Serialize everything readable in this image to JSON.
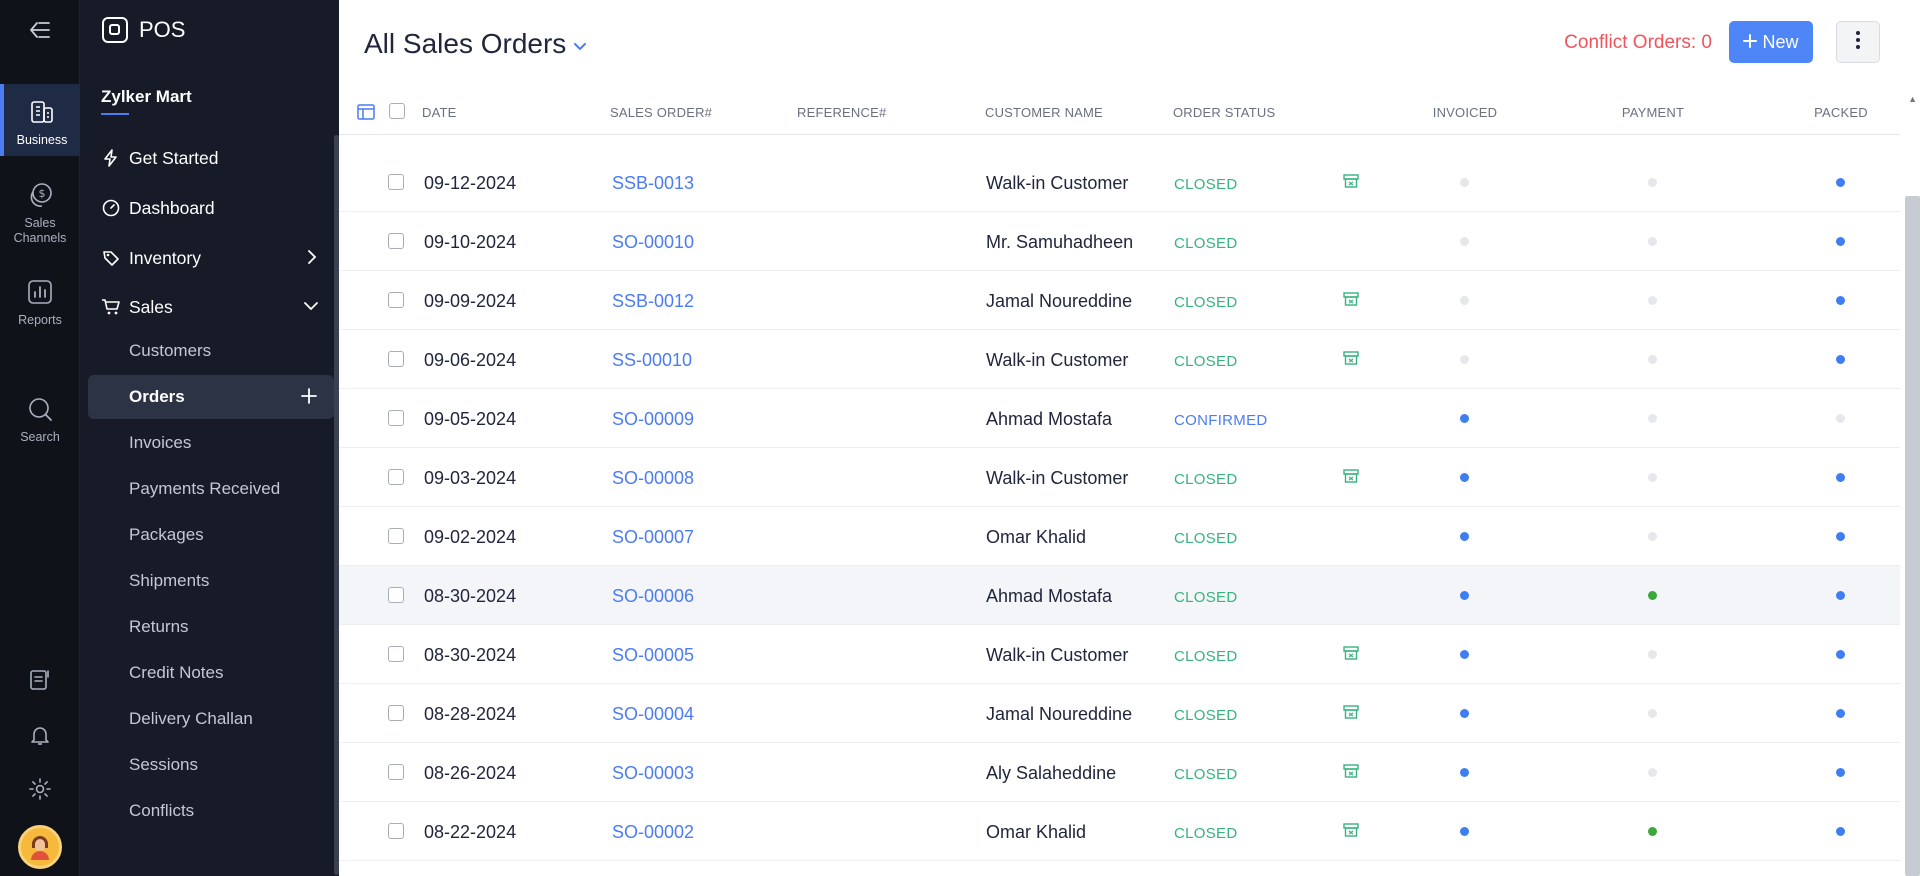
{
  "rail": {
    "items": [
      {
        "label": "Business",
        "icon": "building-icon"
      },
      {
        "label_line1": "Sales",
        "label_line2": "Channels",
        "icon": "dollar-coins-icon"
      },
      {
        "label": "Reports",
        "icon": "chart-icon"
      },
      {
        "label": "Search",
        "icon": "search-icon"
      }
    ]
  },
  "nav": {
    "brand": "POS",
    "org": "Zylker Mart",
    "main": [
      {
        "label": "Get Started"
      },
      {
        "label": "Dashboard"
      },
      {
        "label": "Inventory"
      },
      {
        "label": "Sales"
      }
    ],
    "sub": [
      {
        "label": "Customers"
      },
      {
        "label": "Orders"
      },
      {
        "label": "Invoices"
      },
      {
        "label": "Payments Received"
      },
      {
        "label": "Packages"
      },
      {
        "label": "Shipments"
      },
      {
        "label": "Returns"
      },
      {
        "label": "Credit Notes"
      },
      {
        "label": "Delivery Challan"
      },
      {
        "label": "Sessions"
      },
      {
        "label": "Conflicts"
      }
    ]
  },
  "header": {
    "title": "All Sales Orders",
    "conflict": "Conflict Orders: 0",
    "new_label": "New"
  },
  "table": {
    "columns": {
      "date": "DATE",
      "so": "SALES ORDER#",
      "ref": "REFERENCE#",
      "customer": "CUSTOMER NAME",
      "status": "ORDER STATUS",
      "invoiced": "INVOICED",
      "payment": "PAYMENT",
      "packed": "PACKED"
    },
    "colors": {
      "closed": "#36b37e",
      "confirmed": "#4c7cf3",
      "dot_blue": "#3f7ef0",
      "dot_green": "#3ca83c",
      "dot_grey": "#e5e7eb"
    },
    "rows": [
      {
        "date": "09-12-2024",
        "so": "SSB-0013",
        "customer": "Walk-in Customer",
        "status": "CLOSED",
        "archived": true,
        "invoiced": "grey",
        "payment": "grey",
        "packed": "blue"
      },
      {
        "date": "09-10-2024",
        "so": "SO-00010",
        "customer": "Mr. Samuhadheen",
        "status": "CLOSED",
        "archived": false,
        "invoiced": "grey",
        "payment": "grey",
        "packed": "blue"
      },
      {
        "date": "09-09-2024",
        "so": "SSB-0012",
        "customer": "Jamal Noureddine",
        "status": "CLOSED",
        "archived": true,
        "invoiced": "grey",
        "payment": "grey",
        "packed": "blue"
      },
      {
        "date": "09-06-2024",
        "so": "SS-00010",
        "customer": "Walk-in Customer",
        "status": "CLOSED",
        "archived": true,
        "invoiced": "grey",
        "payment": "grey",
        "packed": "blue"
      },
      {
        "date": "09-05-2024",
        "so": "SO-00009",
        "customer": "Ahmad Mostafa",
        "status": "CONFIRMED",
        "archived": false,
        "invoiced": "blue",
        "payment": "grey",
        "packed": "grey"
      },
      {
        "date": "09-03-2024",
        "so": "SO-00008",
        "customer": "Walk-in Customer",
        "status": "CLOSED",
        "archived": true,
        "invoiced": "blue",
        "payment": "grey",
        "packed": "blue"
      },
      {
        "date": "09-02-2024",
        "so": "SO-00007",
        "customer": "Omar Khalid",
        "status": "CLOSED",
        "archived": false,
        "invoiced": "blue",
        "payment": "grey",
        "packed": "blue"
      },
      {
        "date": "08-30-2024",
        "so": "SO-00006",
        "customer": "Ahmad Mostafa",
        "status": "CLOSED",
        "archived": false,
        "invoiced": "blue",
        "payment": "green",
        "packed": "blue"
      },
      {
        "date": "08-30-2024",
        "so": "SO-00005",
        "customer": "Walk-in Customer",
        "status": "CLOSED",
        "archived": true,
        "invoiced": "blue",
        "payment": "grey",
        "packed": "blue"
      },
      {
        "date": "08-28-2024",
        "so": "SO-00004",
        "customer": "Jamal Noureddine",
        "status": "CLOSED",
        "archived": true,
        "invoiced": "blue",
        "payment": "grey",
        "packed": "blue"
      },
      {
        "date": "08-26-2024",
        "so": "SO-00003",
        "customer": "Aly Salaheddine",
        "status": "CLOSED",
        "archived": true,
        "invoiced": "blue",
        "payment": "grey",
        "packed": "blue"
      },
      {
        "date": "08-22-2024",
        "so": "SO-00002",
        "customer": "Omar Khalid",
        "status": "CLOSED",
        "archived": true,
        "invoiced": "blue",
        "payment": "green",
        "packed": "blue"
      }
    ]
  }
}
